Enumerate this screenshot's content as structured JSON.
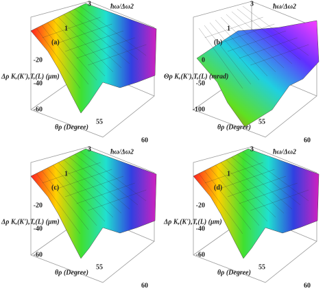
{
  "panels": [
    {
      "tag": "(a)",
      "top_axis": "ħω/Δω2",
      "top_ticks": [
        "3",
        "1"
      ],
      "z_ticks": [
        "-20",
        "-40",
        "-60"
      ],
      "z_label": "Δρ K,(K'),T,(L) (μm)",
      "x_label": "θρ (Degree)",
      "x_ticks": [
        "55",
        "60"
      ]
    },
    {
      "tag": "(b)",
      "top_axis": "ħω/Δω2",
      "top_ticks": [
        "3",
        "1"
      ],
      "z_ticks": [
        "0",
        "-50",
        "-100"
      ],
      "z_label": "Θρ K,(K'),T,(L) (mrad)",
      "x_label": "θρ (Degree)",
      "x_ticks": [
        "55",
        "60"
      ]
    },
    {
      "tag": "(c)",
      "top_axis": "ħω/Δω2",
      "top_ticks": [
        "3",
        "1"
      ],
      "z_ticks": [
        "-20",
        "-40",
        "-60"
      ],
      "z_label": "Δρ K,(K'),T,(L) (μm)",
      "x_label": "θρ (Degree)",
      "x_ticks": [
        "55",
        "60"
      ]
    },
    {
      "tag": "(d)",
      "top_axis": "ħω/Δω2",
      "top_ticks": [
        "3",
        "1"
      ],
      "z_ticks": [
        "-20",
        "-40",
        "-60"
      ],
      "z_label": "Δρ K,(K'),T,(L) (μm)",
      "x_label": "θρ (Degree)",
      "x_ticks": [
        "55",
        "60"
      ]
    }
  ]
}
